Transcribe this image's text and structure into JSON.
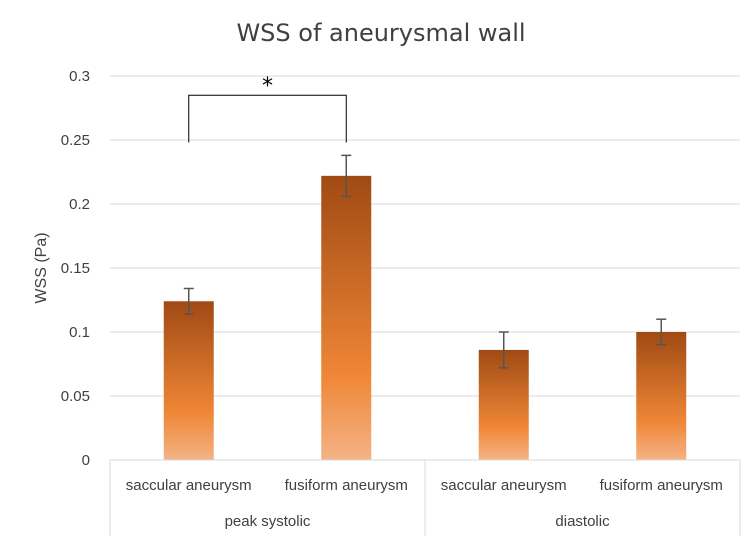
{
  "chart_data": {
    "type": "bar",
    "title": "WSS of aneurysmal wall",
    "xlabel": "",
    "ylabel": "WSS (Pa)",
    "ylim": [
      0,
      0.3
    ],
    "yticks": [
      "0",
      "0.05",
      "0.1",
      "0.15",
      "0.2",
      "0.25",
      "0.3"
    ],
    "grid": true,
    "groups": [
      {
        "label": "peak systolic",
        "bars": [
          {
            "category": "saccular aneurysm",
            "value": 0.124,
            "error": 0.01
          },
          {
            "category": "fusiform aneurysm",
            "value": 0.222,
            "error": 0.016
          }
        ]
      },
      {
        "label": "diastolic",
        "bars": [
          {
            "category": "saccular aneurysm",
            "value": 0.086,
            "error": 0.014
          },
          {
            "category": "fusiform aneurysm",
            "value": 0.1,
            "error": 0.01
          }
        ]
      }
    ],
    "annotation": {
      "text": "*",
      "between": [
        "peak systolic / saccular aneurysm",
        "peak systolic / fusiform aneurysm"
      ]
    },
    "colors": {
      "bar_top": "#a04a14",
      "bar_mid": "#ef8636",
      "bar_bottom": "#f4b386"
    }
  }
}
